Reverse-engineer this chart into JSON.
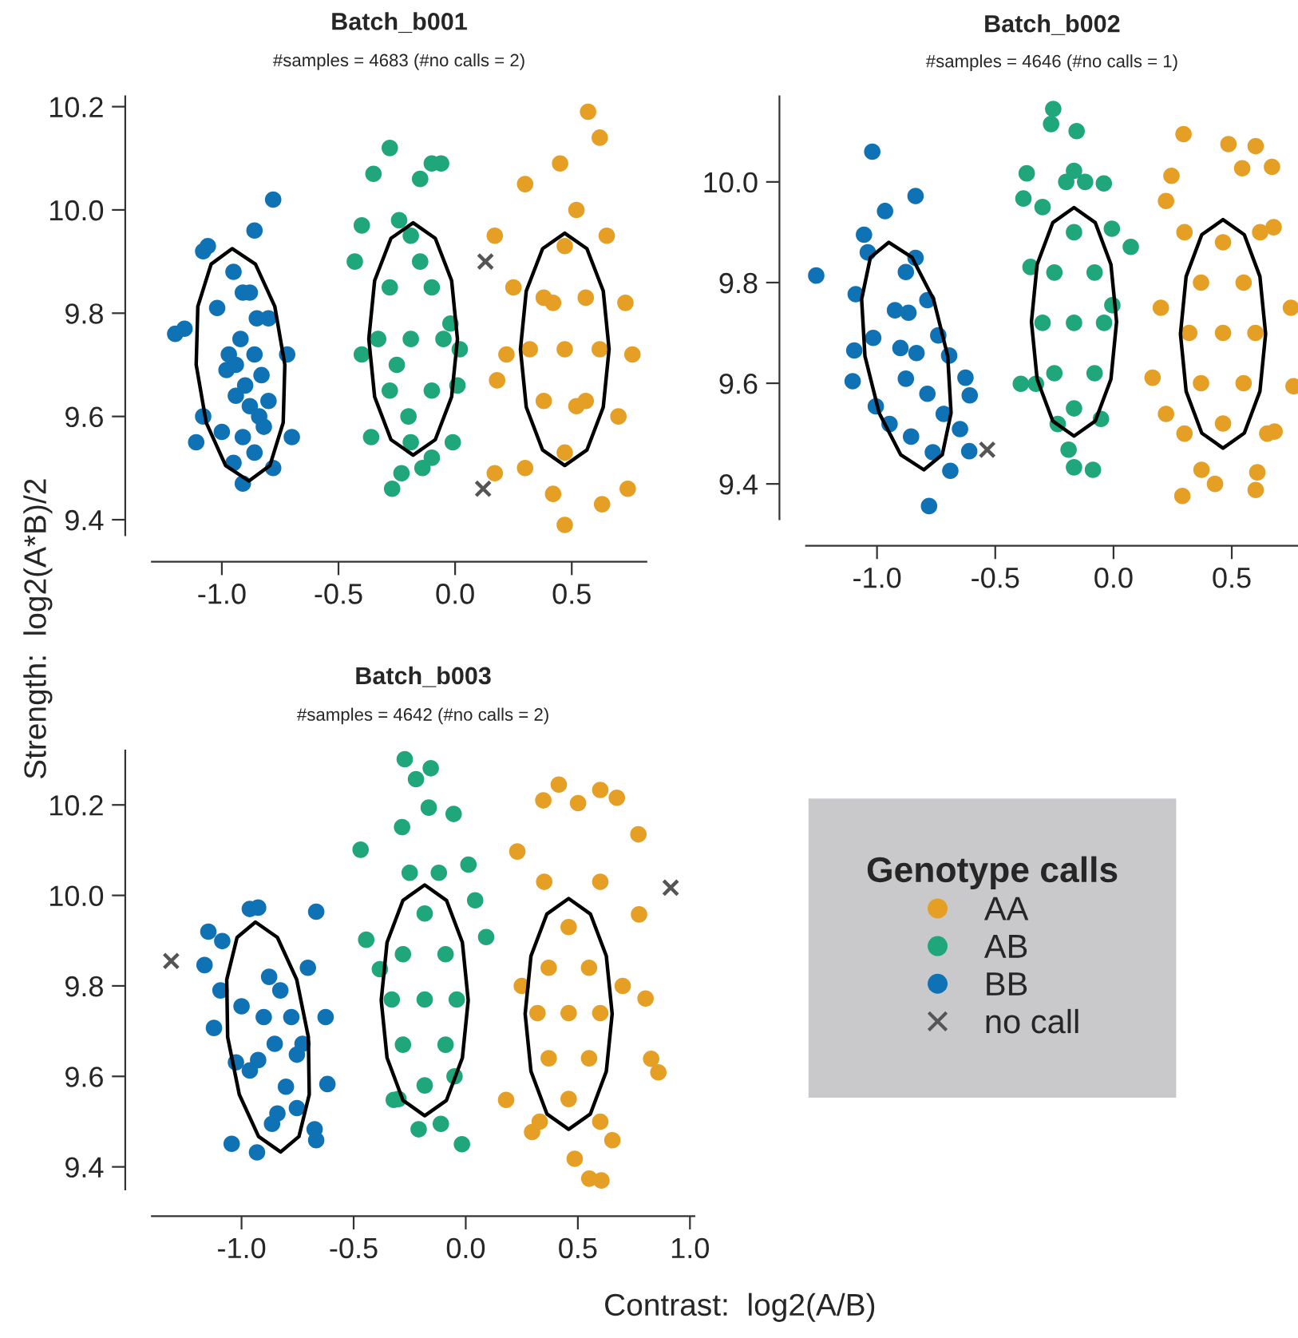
{
  "chart_data": [
    {
      "type": "scatter",
      "title": "Batch_b001",
      "subtitle": "#samples = 4683 (#no calls = 2)",
      "xlim": [
        -1.3,
        0.82
      ],
      "ylim": [
        9.37,
        10.22
      ],
      "xticks": [
        {
          "value": -1.0,
          "label": "-1.0"
        },
        {
          "value": -0.5,
          "label": "-0.5"
        },
        {
          "value": 0.0,
          "label": "0.0"
        },
        {
          "value": 0.5,
          "label": "0.5"
        }
      ],
      "yticks": [
        {
          "value": 9.4,
          "label": "9.4"
        },
        {
          "value": 9.6,
          "label": "9.6"
        },
        {
          "value": 9.8,
          "label": "9.8"
        },
        {
          "value": 10.0,
          "label": "10.0"
        },
        {
          "value": 10.2,
          "label": "10.2"
        }
      ],
      "grid": false,
      "legend": false,
      "series": [
        {
          "type": "scatter",
          "marker": "circle",
          "color": "#e69f25",
          "x": [
            0.47,
            0.47,
            0.47,
            0.56,
            0.38,
            0.56,
            0.38,
            0.62,
            0.32,
            0.42,
            0.52,
            0.73,
            0.76,
            0.22,
            0.17,
            0.18,
            0.57,
            0.62,
            0.45,
            0.3,
            0.63,
            0.74,
            0.47,
            0.17,
            0.25,
            0.7,
            0.3,
            0.65,
            0.42,
            0.52
          ],
          "values": [
            9.73,
            9.93,
            9.53,
            9.83,
            9.83,
            9.63,
            9.63,
            9.73,
            9.73,
            9.45,
            10.0,
            9.82,
            9.72,
            9.72,
            9.95,
            9.67,
            10.19,
            10.14,
            10.09,
            10.05,
            9.43,
            9.46,
            9.39,
            9.49,
            9.85,
            9.6,
            9.5,
            9.95,
            9.82,
            9.62
          ]
        },
        {
          "type": "scatter",
          "marker": "circle",
          "color": "#1fa67a",
          "x": [
            -0.19,
            -0.19,
            -0.19,
            -0.1,
            -0.28,
            -0.1,
            -0.28,
            -0.05,
            -0.33,
            -0.14,
            -0.24,
            -0.4,
            0.02,
            -0.43,
            -0.35,
            -0.28,
            -0.1,
            -0.06,
            -0.27,
            -0.23,
            -0.1,
            -0.01,
            -0.36,
            0.01,
            -0.02,
            -0.4,
            -0.15,
            -0.2,
            -0.15,
            -0.25
          ],
          "values": [
            9.75,
            9.95,
            9.55,
            9.85,
            9.85,
            9.65,
            9.65,
            9.75,
            9.75,
            9.5,
            9.98,
            9.72,
            9.73,
            9.9,
            10.07,
            10.12,
            10.09,
            10.09,
            9.46,
            9.49,
            9.52,
            9.55,
            9.56,
            9.66,
            9.78,
            9.97,
            10.06,
            9.6,
            9.9,
            9.7
          ]
        },
        {
          "type": "scatter",
          "marker": "circle",
          "color": "#0f72b5",
          "x": [
            -1.2,
            -1.16,
            -0.78,
            -0.86,
            -1.08,
            -1.06,
            -0.95,
            -0.91,
            -0.88,
            -1.02,
            -0.85,
            -0.8,
            -0.92,
            -0.97,
            -0.86,
            -0.72,
            -0.98,
            -0.9,
            -0.83,
            -0.94,
            -0.88,
            -0.8,
            -1.08,
            -1.0,
            -0.91,
            -0.82,
            -1.11,
            -0.86,
            -0.7,
            -0.95,
            -0.91,
            -0.78,
            -0.94,
            -0.84
          ],
          "values": [
            9.76,
            9.77,
            10.02,
            9.96,
            9.92,
            9.93,
            9.88,
            9.84,
            9.84,
            9.81,
            9.79,
            9.79,
            9.75,
            9.72,
            9.72,
            9.72,
            9.69,
            9.66,
            9.68,
            9.64,
            9.62,
            9.63,
            9.6,
            9.57,
            9.56,
            9.58,
            9.55,
            9.53,
            9.56,
            9.51,
            9.47,
            9.5,
            9.7,
            9.6
          ]
        },
        {
          "type": "scatter",
          "marker": "cross",
          "color": "#555555",
          "x": [
            0.13,
            0.12
          ],
          "values": [
            9.9,
            9.46
          ]
        },
        {
          "type": "line",
          "marker": "none",
          "line_style": "solid",
          "color": "#000000",
          "x": [
            -1.11,
            -1.103,
            -1.046,
            -0.956,
            -0.856,
            -0.773,
            -0.73,
            null,
            -1.11,
            -1.067,
            -0.984,
            -0.884,
            -0.794,
            -0.737,
            -0.73
          ],
          "values": [
            9.7,
            9.813,
            9.895,
            9.925,
            9.895,
            9.813,
            9.7,
            null,
            9.7,
            9.588,
            9.505,
            9.475,
            9.505,
            9.588,
            9.7
          ]
        },
        {
          "type": "line",
          "marker": "none",
          "line_style": "solid",
          "color": "#000000",
          "x": [
            -0.37,
            -0.345,
            -0.275,
            -0.18,
            -0.085,
            -0.015,
            0.01,
            null,
            -0.37,
            -0.345,
            -0.275,
            -0.18,
            -0.085,
            -0.015,
            0.01
          ],
          "values": [
            9.75,
            9.863,
            9.945,
            9.975,
            9.945,
            9.863,
            9.75,
            null,
            9.75,
            9.638,
            9.555,
            9.525,
            9.555,
            9.638,
            9.75
          ]
        },
        {
          "type": "line",
          "marker": "none",
          "line_style": "solid",
          "color": "#000000",
          "x": [
            0.28,
            0.305,
            0.375,
            0.47,
            0.565,
            0.635,
            0.66,
            null,
            0.28,
            0.305,
            0.375,
            0.47,
            0.565,
            0.635,
            0.66
          ],
          "values": [
            9.73,
            9.843,
            9.925,
            9.955,
            9.925,
            9.843,
            9.73,
            null,
            9.73,
            9.618,
            9.535,
            9.505,
            9.535,
            9.618,
            9.73
          ]
        }
      ]
    },
    {
      "type": "scatter",
      "title": "Batch_b002",
      "subtitle": "#samples = 4646 (#no calls = 1)",
      "xlim": [
        -1.3,
        0.78
      ],
      "ylim": [
        9.33,
        10.17
      ],
      "xticks": [
        {
          "value": -1.0,
          "label": "-1.0"
        },
        {
          "value": -0.5,
          "label": "-0.5"
        },
        {
          "value": 0.0,
          "label": "0.0"
        },
        {
          "value": 0.5,
          "label": "0.5"
        }
      ],
      "yticks": [
        {
          "value": 9.4,
          "label": "9.4"
        },
        {
          "value": 9.6,
          "label": "9.6"
        },
        {
          "value": 9.8,
          "label": "9.8"
        },
        {
          "value": 10.0,
          "label": "10.0"
        }
      ],
      "grid": false,
      "legend": false,
      "series": [
        {
          "type": "scatter",
          "marker": "circle",
          "color": "#e69f25",
          "x": [
            0.296,
            0.486,
            0.601,
            0.67,
            0.544,
            0.222,
            0.245,
            0.677,
            0.165,
            0.761,
            0.222,
            0.681,
            0.291,
            0.429,
            0.601,
            0.608,
            0.372,
            0.463,
            0.463,
            0.463,
            0.55,
            0.37,
            0.55,
            0.37,
            0.6,
            0.32,
            0.3,
            0.62,
            0.3,
            0.65,
            0.75,
            0.2
          ],
          "values": [
            10.095,
            10.075,
            10.071,
            10.03,
            10.027,
            9.962,
            10.012,
            9.91,
            9.611,
            9.594,
            9.539,
            9.504,
            9.376,
            9.4,
            9.388,
            9.423,
            9.428,
            9.7,
            9.88,
            9.52,
            9.8,
            9.8,
            9.6,
            9.6,
            9.7,
            9.7,
            9.9,
            9.9,
            9.5,
            9.5,
            9.75,
            9.75
          ]
        },
        {
          "type": "scatter",
          "marker": "circle",
          "color": "#1fa67a",
          "x": [
            -0.255,
            -0.264,
            -0.156,
            -0.367,
            -0.381,
            -0.167,
            -0.041,
            -0.007,
            0.073,
            -0.005,
            -0.392,
            -0.328,
            -0.351,
            -0.053,
            -0.167,
            -0.087,
            -0.19,
            -0.236,
            -0.167,
            -0.167,
            -0.167,
            -0.08,
            -0.25,
            -0.08,
            -0.25,
            -0.04,
            -0.3,
            -0.2,
            -0.12,
            -0.3
          ],
          "values": [
            10.145,
            10.115,
            10.101,
            10.017,
            9.967,
            10.022,
            9.997,
            9.907,
            9.871,
            9.755,
            9.599,
            9.599,
            9.831,
            9.529,
            9.433,
            9.428,
            9.468,
            9.519,
            9.72,
            9.9,
            9.55,
            9.82,
            9.82,
            9.62,
            9.62,
            9.72,
            9.72,
            10.0,
            10.0,
            9.95
          ]
        },
        {
          "type": "scatter",
          "marker": "circle",
          "color": "#0f72b5",
          "x": [
            -1.257,
            -1.02,
            -0.837,
            -0.966,
            -1.055,
            -1.039,
            -1.09,
            -0.878,
            -0.837,
            -0.924,
            -0.867,
            -0.787,
            -1.016,
            -1.096,
            -1.103,
            -0.901,
            -0.833,
            -0.741,
            -0.695,
            -0.626,
            -0.608,
            -1.005,
            -0.947,
            -0.856,
            -0.764,
            -0.649,
            -0.61,
            -0.69,
            -0.78,
            -0.787,
            -0.878,
            -0.718
          ],
          "values": [
            9.814,
            10.06,
            9.972,
            9.942,
            9.895,
            9.86,
            9.777,
            9.821,
            9.849,
            9.745,
            9.74,
            9.765,
            9.69,
            9.665,
            9.604,
            9.67,
            9.66,
            9.695,
            9.655,
            9.611,
            9.576,
            9.554,
            9.519,
            9.494,
            9.463,
            9.509,
            9.465,
            9.426,
            9.356,
            9.579,
            9.609,
            9.539
          ]
        },
        {
          "type": "scatter",
          "marker": "cross",
          "color": "#555555",
          "x": [
            -0.534
          ],
          "values": [
            9.468
          ]
        },
        {
          "type": "line",
          "marker": "none",
          "line_style": "solid",
          "color": "#000000",
          "x": [
            -1.065,
            -1.028,
            -0.95,
            -0.852,
            -0.761,
            -0.701,
            -0.687,
            null,
            -1.065,
            -1.051,
            -0.991,
            -0.9,
            -0.802,
            -0.724,
            -0.687
          ],
          "values": [
            9.767,
            9.85,
            9.88,
            9.85,
            9.767,
            9.654,
            9.541,
            null,
            9.767,
            9.654,
            9.541,
            9.458,
            9.428,
            9.458,
            9.541
          ]
        },
        {
          "type": "line",
          "marker": "none",
          "line_style": "solid",
          "color": "#000000",
          "x": [
            -0.347,
            -0.323,
            -0.257,
            -0.167,
            -0.077,
            -0.011,
            0.013,
            null,
            -0.347,
            -0.323,
            -0.257,
            -0.167,
            -0.077,
            -0.011,
            0.013
          ],
          "values": [
            9.722,
            9.836,
            9.919,
            9.949,
            9.919,
            9.836,
            9.722,
            null,
            9.722,
            9.608,
            9.525,
            9.495,
            9.525,
            9.608,
            9.722
          ]
        },
        {
          "type": "line",
          "marker": "none",
          "line_style": "solid",
          "color": "#000000",
          "x": [
            0.283,
            0.307,
            0.373,
            0.463,
            0.553,
            0.619,
            0.643,
            null,
            0.283,
            0.307,
            0.373,
            0.463,
            0.553,
            0.619,
            0.643
          ],
          "values": [
            9.698,
            9.812,
            9.895,
            9.925,
            9.895,
            9.812,
            9.698,
            null,
            9.698,
            9.584,
            9.501,
            9.471,
            9.501,
            9.584,
            9.698
          ]
        }
      ]
    },
    {
      "type": "scatter",
      "title": "Batch_b003",
      "subtitle": "#samples = 4642 (#no calls = 2)",
      "xlabel": "Contrast:  log2(A/B)",
      "ylabel": "Strength:  log2(A*B)/2",
      "legend_title": "Genotype calls",
      "xlim": [
        -1.4,
        1.02
      ],
      "ylim": [
        9.35,
        10.32
      ],
      "xticks": [
        {
          "value": -1.0,
          "label": "-1.0"
        },
        {
          "value": -0.5,
          "label": "-0.5"
        },
        {
          "value": 0.0,
          "label": "0.0"
        },
        {
          "value": 0.5,
          "label": "0.5"
        },
        {
          "value": 1.0,
          "label": "1.0"
        }
      ],
      "yticks": [
        {
          "value": 9.4,
          "label": "9.4"
        },
        {
          "value": 9.6,
          "label": "9.6"
        },
        {
          "value": 9.8,
          "label": "9.8"
        },
        {
          "value": 10.0,
          "label": "10.0"
        },
        {
          "value": 10.2,
          "label": "10.2"
        }
      ],
      "grid": false,
      "legend": "right",
      "series": [
        {
          "name": "AA",
          "type": "scatter",
          "marker": "circle",
          "color": "#e69f25",
          "x": [
            0.346,
            0.415,
            0.501,
            0.6,
            0.674,
            0.77,
            0.23,
            0.773,
            0.802,
            0.827,
            0.859,
            0.18,
            0.296,
            0.486,
            0.551,
            0.605,
            0.654,
            0.459,
            0.459,
            0.459,
            0.55,
            0.37,
            0.55,
            0.37,
            0.6,
            0.32,
            0.35,
            0.6,
            0.33,
            0.6,
            0.7,
            0.25
          ],
          "values": [
            10.21,
            10.245,
            10.204,
            10.233,
            10.216,
            10.135,
            10.097,
            9.958,
            9.772,
            9.639,
            9.609,
            9.548,
            9.477,
            9.418,
            9.374,
            9.37,
            9.459,
            9.74,
            9.93,
            9.55,
            9.84,
            9.84,
            9.64,
            9.64,
            9.74,
            9.74,
            10.03,
            10.03,
            9.5,
            9.5,
            9.8,
            9.8
          ]
        },
        {
          "name": "AB",
          "type": "scatter",
          "marker": "circle",
          "color": "#1fa67a",
          "x": [
            -0.272,
            -0.156,
            -0.222,
            -0.165,
            -0.054,
            -0.284,
            -0.469,
            0.012,
            0.042,
            0.091,
            -0.444,
            -0.321,
            -0.21,
            -0.017,
            -0.111,
            -0.383,
            -0.183,
            -0.183,
            -0.183,
            -0.09,
            -0.28,
            -0.09,
            -0.28,
            -0.04,
            -0.33,
            -0.12,
            -0.25,
            -0.05,
            -0.3
          ],
          "values": [
            10.301,
            10.281,
            10.257,
            10.194,
            10.18,
            10.151,
            10.101,
            10.068,
            9.989,
            9.908,
            9.902,
            9.548,
            9.483,
            9.45,
            9.495,
            9.837,
            9.77,
            9.96,
            9.58,
            9.87,
            9.87,
            9.67,
            9.67,
            9.77,
            9.77,
            10.05,
            10.05,
            9.6,
            9.55
          ]
        },
        {
          "name": "BB",
          "type": "scatter",
          "marker": "circle",
          "color": "#0f72b5",
          "x": [
            -1.165,
            -1.148,
            -1.086,
            -1.094,
            -1.123,
            -0.963,
            -0.926,
            -0.667,
            -0.704,
            -0.625,
            -0.617,
            -0.674,
            -0.667,
            -1.044,
            -0.931,
            -0.963,
            -1.025,
            -0.877,
            -0.827,
            -0.778,
            -0.901,
            -0.852,
            -0.753,
            -0.926,
            -0.802,
            -0.84,
            -0.753,
            -0.864,
            -1.0,
            -0.728
          ],
          "values": [
            9.846,
            9.92,
            9.899,
            9.79,
            9.707,
            9.97,
            9.973,
            9.964,
            9.84,
            9.731,
            9.583,
            9.483,
            9.459,
            9.451,
            9.432,
            9.613,
            9.631,
            9.82,
            9.79,
            9.731,
            9.731,
            9.672,
            9.648,
            9.636,
            9.577,
            9.518,
            9.53,
            9.495,
            9.755,
            9.672
          ]
        },
        {
          "name": "no call",
          "type": "scatter",
          "marker": "cross",
          "color": "#555555",
          "x": [
            -1.314,
            0.914
          ],
          "values": [
            9.855,
            10.017
          ]
        },
        {
          "type": "line",
          "marker": "none",
          "line_style": "solid",
          "color": "#000000",
          "x": [
            -1.066,
            -1.02,
            -0.938,
            -0.84,
            -0.754,
            -0.702,
            -0.698,
            null,
            -1.066,
            -1.062,
            -1.01,
            -0.924,
            -0.826,
            -0.744,
            -0.698
          ],
          "values": [
            9.814,
            9.907,
            9.941,
            9.907,
            9.814,
            9.687,
            9.56,
            null,
            9.814,
            9.687,
            9.56,
            9.467,
            9.433,
            9.467,
            9.56
          ]
        },
        {
          "type": "line",
          "marker": "none",
          "line_style": "solid",
          "color": "#000000",
          "x": [
            -0.377,
            -0.351,
            -0.28,
            -0.183,
            -0.086,
            -0.015,
            0.011,
            null,
            -0.377,
            -0.351,
            -0.28,
            -0.183,
            -0.086,
            -0.015,
            0.011
          ],
          "values": [
            9.768,
            9.896,
            9.989,
            10.023,
            9.989,
            9.896,
            9.768,
            null,
            9.768,
            9.641,
            9.547,
            9.513,
            9.547,
            9.641,
            9.768
          ]
        },
        {
          "type": "line",
          "marker": "none",
          "line_style": "solid",
          "color": "#000000",
          "x": [
            0.265,
            0.291,
            0.362,
            0.459,
            0.556,
            0.627,
            0.653,
            null,
            0.265,
            0.291,
            0.362,
            0.459,
            0.556,
            0.627,
            0.653
          ],
          "values": [
            9.738,
            9.866,
            9.959,
            9.993,
            9.959,
            9.866,
            9.738,
            null,
            9.738,
            9.611,
            9.517,
            9.483,
            9.517,
            9.611,
            9.738
          ]
        }
      ]
    }
  ]
}
